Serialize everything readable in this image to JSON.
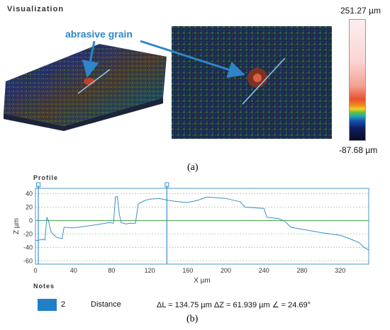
{
  "visualization": {
    "title": "Visualization",
    "annotation": "abrasive grain",
    "scale_max": "251.27 µm",
    "scale_min": "-87.68 µm",
    "caption": "(a)",
    "colors": {
      "surface_dark": "#1c2a4a",
      "arrow": "#2e86c8"
    }
  },
  "profile": {
    "title": "Profile",
    "caption": "(b)",
    "chart_data": {
      "type": "line",
      "xlabel": "X µm",
      "ylabel": "Z µm",
      "xlim": [
        0,
        350
      ],
      "ylim": [
        -65,
        48
      ],
      "xticks": [
        0,
        40,
        80,
        120,
        160,
        200,
        240,
        280,
        320
      ],
      "yticks": [
        40,
        20,
        0,
        -20,
        -40,
        -60
      ],
      "cursors": [
        3,
        138
      ],
      "series": [
        {
          "x": [
            0,
            8,
            10,
            12,
            14,
            16,
            18,
            20,
            22,
            28,
            30,
            40,
            60,
            78,
            82,
            84,
            86,
            88,
            90,
            95,
            100,
            105,
            108,
            115,
            120,
            130,
            140,
            150,
            160,
            170,
            180,
            200,
            215,
            220,
            240,
            243,
            255,
            262,
            268,
            280,
            300,
            320,
            330,
            340,
            345,
            350
          ],
          "y": [
            -30,
            -28,
            -29,
            5,
            -2,
            -15,
            -20,
            -22,
            -25,
            -27,
            -10,
            -11,
            -7,
            -3,
            -4,
            35,
            36,
            10,
            -3,
            -5,
            -4,
            -4,
            25,
            30,
            32,
            33,
            30,
            28,
            27,
            30,
            35,
            33,
            28,
            20,
            18,
            5,
            3,
            -1,
            -10,
            -13,
            -18,
            -22,
            -27,
            -33,
            -40,
            -44
          ]
        }
      ]
    }
  },
  "notes": {
    "title": "Notes",
    "index": "2",
    "type": "Distance",
    "measure": "ΔL = 134.75 µm ΔZ = 61.939 µm ∠ = 24.69°",
    "color": "#1f7fc7"
  }
}
